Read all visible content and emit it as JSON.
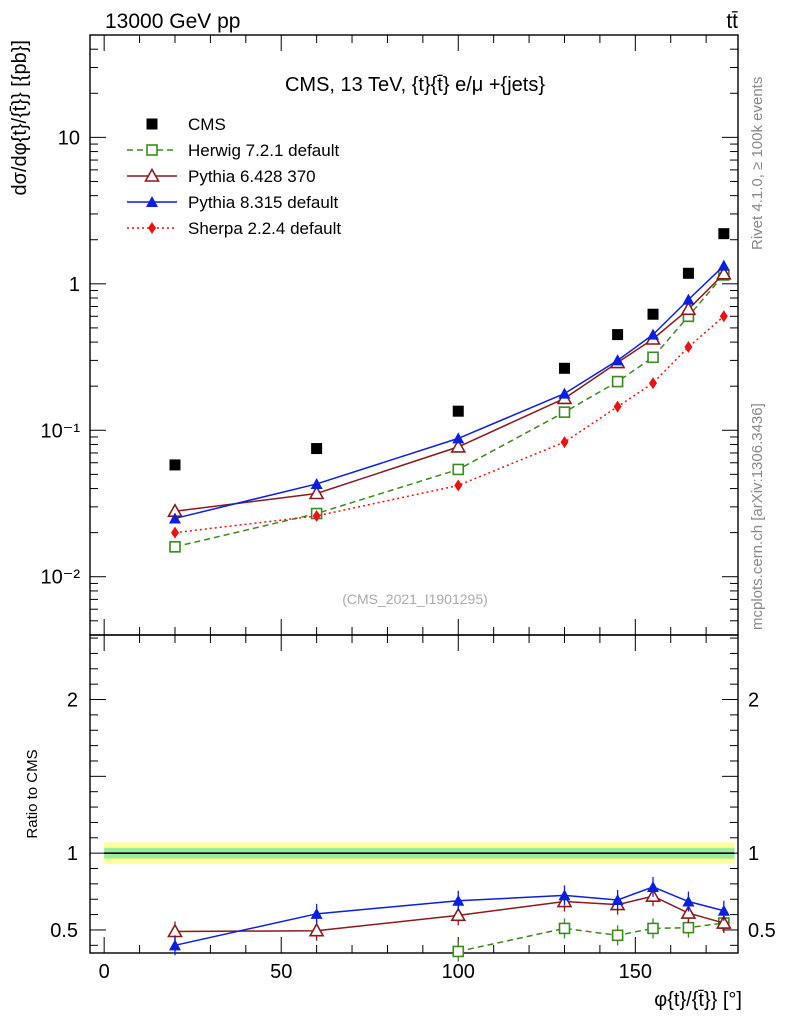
{
  "header": {
    "left": "13000 GeV pp",
    "right": "tt̄"
  },
  "side_labels": {
    "rivet": "Rivet 4.1.0, ≥ 100k events",
    "mcplots": "mcplots.cern.ch [arXiv:1306.3436]"
  },
  "chart_data": [
    {
      "type": "scatter-line",
      "panel": "main",
      "title": "CMS, 13 TeV, {t}{t̄} e/μ +{jets}",
      "watermark": "(CMS_2021_I1901295)",
      "ylabel": "dσ/dφ{t}/{t̄}} [{pb}]",
      "yscale": "log",
      "ylim": [
        0.004,
        50
      ],
      "xlim": [
        -4,
        179
      ],
      "ytick_labels": [
        "10⁻²",
        "10⁻¹",
        "1",
        "10"
      ],
      "x": [
        20,
        60,
        100,
        130,
        145,
        155,
        165,
        175
      ],
      "series": [
        {
          "name": "CMS",
          "marker": "square",
          "color": "#000000",
          "line": "none",
          "values": [
            0.058,
            0.075,
            0.135,
            0.265,
            0.45,
            0.62,
            1.18,
            2.2
          ]
        },
        {
          "name": "Herwig 7.2.1 default",
          "marker": "open-square",
          "color": "#3a8a1e",
          "line": "dashed",
          "values": [
            0.016,
            0.027,
            0.054,
            0.133,
            0.215,
            0.315,
            0.6,
            1.15
          ]
        },
        {
          "name": "Pythia 6.428 370",
          "marker": "open-triangle",
          "color": "#8b1a1a",
          "line": "solid",
          "values": [
            0.028,
            0.037,
            0.077,
            0.165,
            0.29,
            0.42,
            0.67,
            1.17
          ]
        },
        {
          "name": "Pythia 8.315 default",
          "marker": "triangle",
          "color": "#0a1fe0",
          "line": "solid",
          "values": [
            0.025,
            0.043,
            0.088,
            0.178,
            0.3,
            0.45,
            0.78,
            1.33
          ]
        },
        {
          "name": "Sherpa 2.2.4 default",
          "marker": "diamond",
          "color": "#ee1111",
          "line": "dotted",
          "values": [
            0.02,
            0.026,
            0.042,
            0.083,
            0.145,
            0.21,
            0.37,
            0.6
          ]
        }
      ]
    },
    {
      "type": "scatter-line",
      "panel": "ratio",
      "ylabel": "Ratio to CMS",
      "xlabel": "φ{t}/{t̄}} [°]",
      "ylim": [
        0.35,
        2.42
      ],
      "xlim": [
        -4,
        179
      ],
      "yticks": [
        "0.5",
        "1",
        "2"
      ],
      "xticks": [
        "0",
        "50",
        "100",
        "150"
      ],
      "band_inner_halfwidth": 0.035,
      "band_outer_halfwidth": 0.07,
      "series": [
        {
          "name": "Herwig 7.2.1 default",
          "x": [
            100,
            130,
            145,
            155,
            165,
            175
          ],
          "values": [
            0.36,
            0.51,
            0.465,
            0.51,
            0.515,
            0.545
          ]
        },
        {
          "name": "Pythia 6.428 370",
          "x": [
            20,
            60,
            100,
            130,
            145,
            155,
            165,
            175
          ],
          "values": [
            0.49,
            0.495,
            0.595,
            0.685,
            0.665,
            0.72,
            0.61,
            0.545
          ]
        },
        {
          "name": "Pythia 8.315 default",
          "x": [
            20,
            60,
            100,
            130,
            145,
            155,
            165,
            175
          ],
          "values": [
            0.4,
            0.605,
            0.69,
            0.725,
            0.695,
            0.78,
            0.685,
            0.625
          ]
        }
      ]
    }
  ]
}
